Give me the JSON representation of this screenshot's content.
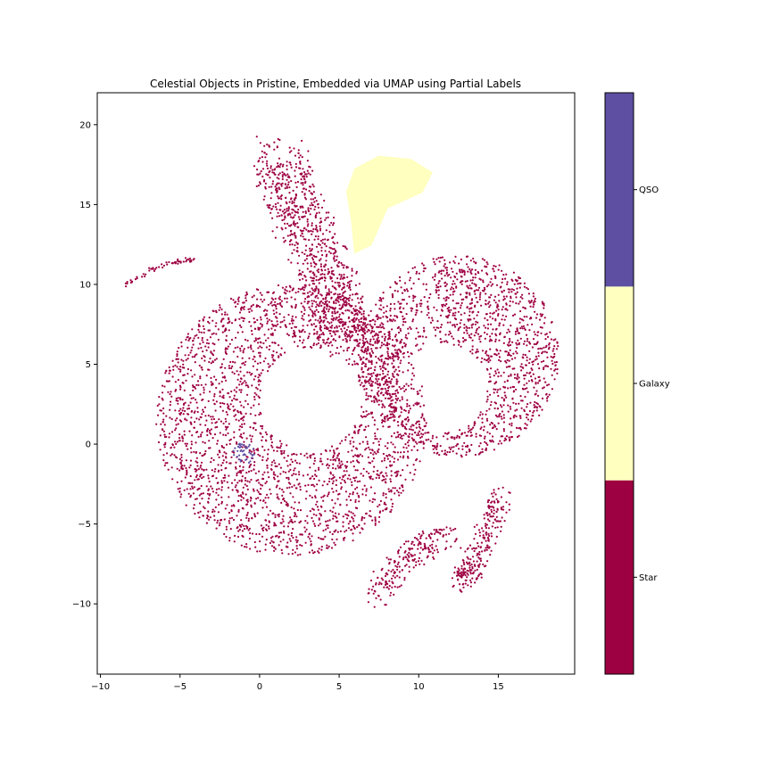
{
  "chart_data": {
    "type": "scatter",
    "title": "Celestial Objects in Pristine, Embedded via UMAP using Partial Labels",
    "xlabel": "",
    "ylabel": "",
    "xlim": [
      -10.2,
      19.8
    ],
    "ylim": [
      -14.4,
      22.0
    ],
    "xticks": [
      -10,
      -5,
      0,
      5,
      10,
      15
    ],
    "yticks": [
      -10,
      -5,
      0,
      5,
      10,
      15,
      20
    ],
    "grid": false,
    "colorbar": {
      "placement": "right",
      "categories": [
        {
          "label": "Star",
          "color": "#9e0142"
        },
        {
          "label": "Galaxy",
          "color": "#ffffbf"
        },
        {
          "label": "QSO",
          "color": "#5e4fa2"
        }
      ]
    },
    "series": [
      {
        "class": "Star",
        "color": "#9e0142",
        "clusters": [
          {
            "region": "main-crescent",
            "center": [
              2.0,
              1.5
            ],
            "outer_radius": 8.5,
            "inner_radius": 3.2,
            "inner_center": [
              3.2,
              2.8
            ],
            "points": 2600
          },
          {
            "region": "right-lobe",
            "center": [
              12.5,
              5.5
            ],
            "outer_radius": 6.3,
            "inner_radius": 2.8,
            "inner_center": [
              11.5,
              3.5
            ],
            "points": 1500
          },
          {
            "region": "top-arm",
            "path": [
              [
                1.2,
                17.8
              ],
              [
                2.2,
                15.0
              ],
              [
                3.5,
                12.0
              ],
              [
                4.8,
                9.0
              ],
              [
                5.2,
                7.0
              ]
            ],
            "width": 1.6,
            "points": 900
          },
          {
            "region": "lower-tail",
            "path": [
              [
                12.6,
                -8.6
              ],
              [
                13.5,
                -7.5
              ],
              [
                14.5,
                -5.0
              ],
              [
                15.3,
                -3.0
              ]
            ],
            "width": 0.7,
            "points": 250
          },
          {
            "region": "bottom-tail",
            "path": [
              [
                7.2,
                -9.5
              ],
              [
                8.5,
                -8.0
              ],
              [
                10.0,
                -6.5
              ],
              [
                12.0,
                -5.8
              ]
            ],
            "width": 0.8,
            "points": 220
          },
          {
            "region": "left-tail",
            "path": [
              [
                -8.8,
                9.8
              ],
              [
                -7.0,
                10.8
              ],
              [
                -5.5,
                11.4
              ],
              [
                -4.0,
                11.6
              ]
            ],
            "width": 0.15,
            "points": 60
          }
        ]
      },
      {
        "class": "Galaxy",
        "color": "#ffffbf",
        "clusters": [
          {
            "region": "top-fan",
            "polygon": [
              [
                5.5,
                15.8
              ],
              [
                6.0,
                17.2
              ],
              [
                7.5,
                18.0
              ],
              [
                9.5,
                17.8
              ],
              [
                10.8,
                17.0
              ],
              [
                10.2,
                15.8
              ],
              [
                8.0,
                14.8
              ],
              [
                7.0,
                12.5
              ],
              [
                6.0,
                12.0
              ],
              [
                5.8,
                14.0
              ]
            ],
            "points": 0
          }
        ]
      },
      {
        "class": "QSO",
        "color": "#5e4fa2",
        "clusters": [
          {
            "region": "small-branch",
            "center": [
              -1.0,
              -0.6
            ],
            "radius": 0.7,
            "points": 40
          }
        ]
      }
    ]
  }
}
